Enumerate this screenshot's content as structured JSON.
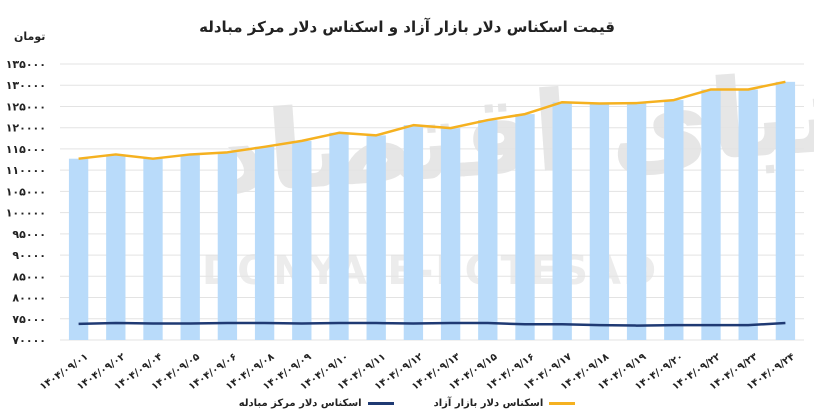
{
  "chart_data": {
    "type": "bar",
    "title": "قیمت اسکناس دلار بازار آزاد و اسکناس دلار مرکز مبادله",
    "ylabel": "تومان",
    "ylim": [
      70000,
      135000
    ],
    "yticks": [
      "۷۰۰۰۰",
      "۷۵۰۰۰",
      "۸۰۰۰۰",
      "۸۵۰۰۰",
      "۹۰۰۰۰",
      "۹۵۰۰۰",
      "۱۰۰۰۰۰",
      "۱۰۵۰۰۰",
      "۱۱۰۰۰۰",
      "۱۱۵۰۰۰",
      "۱۲۰۰۰۰",
      "۱۲۵۰۰۰",
      "۱۳۰۰۰۰",
      "۱۳۵۰۰۰"
    ],
    "ytick_values": [
      70000,
      75000,
      80000,
      85000,
      90000,
      95000,
      100000,
      105000,
      110000,
      115000,
      120000,
      125000,
      130000,
      135000
    ],
    "categories": [
      "۱۴۰۴/۰۹/۰۱",
      "۱۴۰۴/۰۹/۰۲",
      "۱۴۰۴/۰۹/۰۴",
      "۱۴۰۴/۰۹/۰۵",
      "۱۴۰۴/۰۹/۰۶",
      "۱۴۰۴/۰۹/۰۸",
      "۱۴۰۴/۰۹/۰۹",
      "۱۴۰۴/۰۹/۱۰",
      "۱۴۰۴/۰۹/۱۱",
      "۱۴۰۴/۰۹/۱۲",
      "۱۴۰۴/۰۹/۱۳",
      "۱۴۰۴/۰۹/۱۵",
      "۱۴۰۴/۰۹/۱۶",
      "۱۴۰۴/۰۹/۱۷",
      "۱۴۰۴/۰۹/۱۸",
      "۱۴۰۴/۰۹/۱۹",
      "۱۴۰۴/۰۹/۲۰",
      "۱۴۰۴/۰۹/۲۲",
      "۱۴۰۴/۰۹/۲۳",
      "۱۴۰۴/۰۹/۲۴"
    ],
    "series": [
      {
        "name": "اسکناس دلار بازار آزاد",
        "render": "bar+line",
        "color": "#f5b120",
        "bar_color": "#b9dbfa",
        "values": [
          112700,
          113700,
          112700,
          113700,
          114200,
          115500,
          116900,
          118800,
          118200,
          120600,
          119900,
          121800,
          123200,
          126000,
          125700,
          125800,
          126500,
          129000,
          129000,
          130800
        ]
      },
      {
        "name": "اسکناس دلار مرکز مبادله",
        "render": "line",
        "color": "#1f3a73",
        "values": [
          73800,
          74000,
          73900,
          73900,
          74000,
          74000,
          73900,
          74000,
          74000,
          73900,
          74000,
          74000,
          73700,
          73700,
          73500,
          73400,
          73500,
          73500,
          73500,
          74000
        ]
      }
    ],
    "legend_position": "bottom-center",
    "grid": true
  },
  "watermark": {
    "arabic": "دنیای اقتصاد",
    "latin": "DONYA-E-EQTESAD"
  }
}
